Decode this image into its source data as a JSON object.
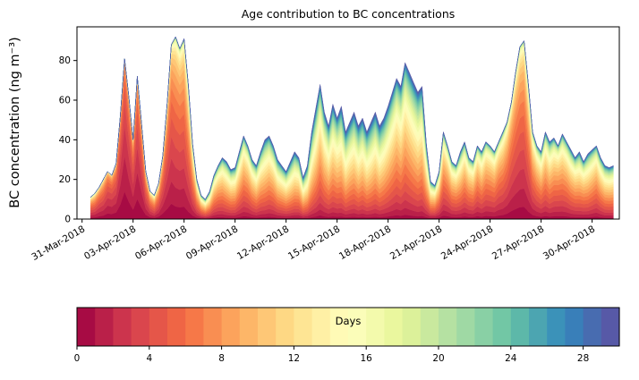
{
  "figure": {
    "background": "#ffffff"
  },
  "colorbar": {
    "label": "Days",
    "ticks": [
      0,
      4,
      8,
      12,
      16,
      20,
      24,
      28
    ],
    "range": [
      0,
      30
    ],
    "segments": 30
  },
  "chart_data": {
    "type": "area",
    "stacked": true,
    "title": "Age contribution to BC concentrations",
    "xlabel": "",
    "ylabel": "BC concentration (ng m⁻³)",
    "legend": "horizontal colorbar labelled Days, 0 to 30, Spectral colormap: young air (0 days) dark red at stack bottom, old air (30 days) blue-purple at stack top",
    "grid": false,
    "ylim": [
      0,
      97
    ],
    "xlim": [
      -0.3,
      31.6
    ],
    "y_ticks": [
      0,
      20,
      40,
      60,
      80
    ],
    "x_ticks": [
      0,
      3,
      6,
      9,
      12,
      15,
      18,
      21,
      24,
      27,
      30
    ],
    "x_ticklabels": [
      "31-Mar-2018",
      "03-Apr-2018",
      "06-Apr-2018",
      "09-Apr-2018",
      "12-Apr-2018",
      "15-Apr-2018",
      "18-Apr-2018",
      "21-Apr-2018",
      "24-Apr-2018",
      "27-Apr-2018",
      "30-Apr-2018"
    ],
    "colormap": {
      "name": "Spectral",
      "stops": [
        "#9e0142",
        "#d53e4f",
        "#f46d43",
        "#fdae61",
        "#fee08b",
        "#ffffbf",
        "#e6f598",
        "#abdda4",
        "#66c2a5",
        "#3288bd",
        "#5e4fa2"
      ]
    },
    "age_bins": {
      "min": 0,
      "max": 30,
      "count": 30
    },
    "x": {
      "start_days_after_31mar": 0.5,
      "step_days": 0.25,
      "count": 124
    },
    "total_bc": [
      11,
      13,
      16,
      20,
      24,
      22,
      28,
      52,
      81,
      62,
      40,
      72,
      48,
      24,
      14,
      12,
      18,
      32,
      58,
      88,
      92,
      86,
      91,
      68,
      38,
      20,
      12,
      10,
      14,
      22,
      27,
      31,
      29,
      25,
      26,
      34,
      42,
      37,
      30,
      27,
      34,
      40,
      42,
      37,
      30,
      27,
      24,
      29,
      34,
      31,
      21,
      27,
      44,
      56,
      68,
      54,
      47,
      58,
      51,
      57,
      44,
      49,
      54,
      47,
      51,
      44,
      49,
      54,
      47,
      51,
      57,
      64,
      71,
      67,
      79,
      74,
      69,
      64,
      67,
      38,
      19,
      17,
      24,
      44,
      37,
      29,
      27,
      34,
      39,
      31,
      29,
      37,
      34,
      39,
      37,
      34,
      39,
      44,
      49,
      59,
      74,
      87,
      90,
      68,
      44,
      37,
      34,
      44,
      39,
      41,
      37,
      43,
      39,
      35,
      31,
      34,
      29,
      33,
      35,
      37,
      31,
      27,
      26,
      27
    ],
    "mean_age_days": [
      6,
      6,
      5,
      5,
      4,
      4,
      4,
      3.5,
      3,
      3.5,
      4,
      3.5,
      4,
      5,
      6,
      7,
      6,
      5,
      5,
      5,
      6,
      6,
      6,
      7,
      8,
      9,
      10,
      11,
      11,
      10,
      10,
      11,
      12,
      12,
      12,
      11,
      10,
      10,
      11,
      12,
      12,
      13,
      12,
      12,
      13,
      13,
      13,
      14,
      14,
      13,
      14,
      15,
      15,
      14,
      12,
      13,
      14,
      14,
      14,
      15,
      16,
      15,
      15,
      16,
      15,
      16,
      16,
      15,
      16,
      15,
      14,
      13,
      12,
      13,
      12,
      13,
      14,
      15,
      14,
      13,
      12,
      11,
      10,
      9,
      9,
      10,
      10,
      11,
      10,
      10,
      10,
      9,
      10,
      9,
      9,
      9,
      8,
      8,
      7,
      6,
      6,
      6,
      6,
      7,
      8,
      9,
      10,
      10,
      11,
      10,
      9,
      10,
      10,
      11,
      11,
      12,
      11,
      12,
      11,
      10,
      11,
      12,
      12,
      12
    ],
    "age_distribution_shape": 1.4
  }
}
